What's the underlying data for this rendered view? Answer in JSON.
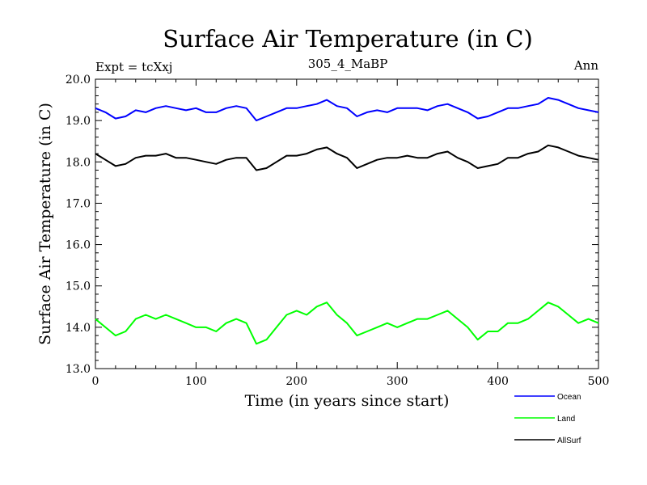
{
  "chart_data": {
    "type": "line",
    "title": "Surface Air Temperature (in C)",
    "subtitle": "305_4_MaBP",
    "left_note": "Expt = tcXxj",
    "right_note": "Ann",
    "xlabel": "Time (in years since start)",
    "ylabel": "Surface Air Temperature (in C)",
    "xlim": [
      0,
      500
    ],
    "ylim": [
      13.0,
      20.0
    ],
    "xticks": [
      0,
      100,
      200,
      300,
      400,
      500
    ],
    "xtick_labels": [
      "0",
      "100",
      "200",
      "300",
      "400",
      "500"
    ],
    "yticks": [
      13.0,
      14.0,
      15.0,
      16.0,
      17.0,
      18.0,
      19.0,
      20.0
    ],
    "ytick_labels": [
      "13.0",
      "14.0",
      "15.0",
      "16.0",
      "17.0",
      "18.0",
      "19.0",
      "20.0"
    ],
    "grid": false,
    "legend_position": "bottom-right",
    "x": [
      0,
      10,
      20,
      30,
      40,
      50,
      60,
      70,
      80,
      90,
      100,
      110,
      120,
      130,
      140,
      150,
      160,
      170,
      180,
      190,
      200,
      210,
      220,
      230,
      240,
      250,
      260,
      270,
      280,
      290,
      300,
      310,
      320,
      330,
      340,
      350,
      360,
      370,
      380,
      390,
      400,
      410,
      420,
      430,
      440,
      450,
      460,
      470,
      480,
      490,
      500
    ],
    "series": [
      {
        "name": "Ocean",
        "color": "#0000ff",
        "values": [
          19.3,
          19.2,
          19.05,
          19.1,
          19.25,
          19.2,
          19.3,
          19.35,
          19.3,
          19.25,
          19.3,
          19.2,
          19.2,
          19.3,
          19.35,
          19.3,
          19.0,
          19.1,
          19.2,
          19.3,
          19.3,
          19.35,
          19.4,
          19.5,
          19.35,
          19.3,
          19.1,
          19.2,
          19.25,
          19.2,
          19.3,
          19.3,
          19.3,
          19.25,
          19.35,
          19.4,
          19.3,
          19.2,
          19.05,
          19.1,
          19.2,
          19.3,
          19.3,
          19.35,
          19.4,
          19.55,
          19.5,
          19.4,
          19.3,
          19.25,
          19.2
        ]
      },
      {
        "name": "Land",
        "color": "#00ff00",
        "values": [
          14.2,
          14.0,
          13.8,
          13.9,
          14.2,
          14.3,
          14.2,
          14.3,
          14.2,
          14.1,
          14.0,
          14.0,
          13.9,
          14.1,
          14.2,
          14.1,
          13.6,
          13.7,
          14.0,
          14.3,
          14.4,
          14.3,
          14.5,
          14.6,
          14.3,
          14.1,
          13.8,
          13.9,
          14.0,
          14.1,
          14.0,
          14.1,
          14.2,
          14.2,
          14.3,
          14.4,
          14.2,
          14.0,
          13.7,
          13.9,
          13.9,
          14.1,
          14.1,
          14.2,
          14.4,
          14.6,
          14.5,
          14.3,
          14.1,
          14.2,
          14.1
        ]
      },
      {
        "name": "AllSurf",
        "color": "#000000",
        "values": [
          18.2,
          18.05,
          17.9,
          17.95,
          18.1,
          18.15,
          18.15,
          18.2,
          18.1,
          18.1,
          18.05,
          18.0,
          17.95,
          18.05,
          18.1,
          18.1,
          17.8,
          17.85,
          18.0,
          18.15,
          18.15,
          18.2,
          18.3,
          18.35,
          18.2,
          18.1,
          17.85,
          17.95,
          18.05,
          18.1,
          18.1,
          18.15,
          18.1,
          18.1,
          18.2,
          18.25,
          18.1,
          18.0,
          17.85,
          17.9,
          17.95,
          18.1,
          18.1,
          18.2,
          18.25,
          18.4,
          18.35,
          18.25,
          18.15,
          18.1,
          18.05
        ]
      }
    ]
  }
}
